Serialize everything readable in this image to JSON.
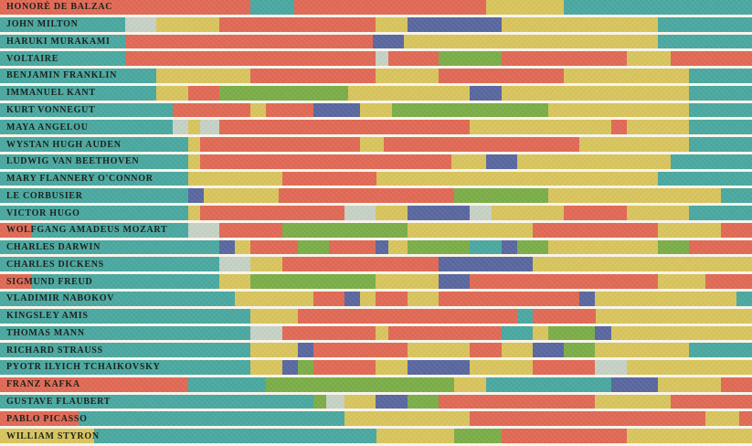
{
  "chart_data": {
    "type": "stacked-bar-timeline",
    "description": "Daily routines of famous creatives; each horizontal bar spans 24 hours (midnight to midnight), segmented by activity color.",
    "x_unit": "hours",
    "x_range": [
      0,
      24
    ],
    "grid": false,
    "legend": "none visible",
    "palette": {
      "teal": "#4ba9a1",
      "red": "#e16a56",
      "yellow": "#d9c55e",
      "navy": "#5a68a0",
      "green": "#7cae49",
      "gray": "#c7d2c6"
    },
    "separator_color": "#f7f4ea",
    "label_color": "#1e211d",
    "rows": [
      {
        "name": "HONORÉ DE BALZAC",
        "segments": [
          [
            0,
            8,
            "red"
          ],
          [
            8,
            9.4,
            "teal"
          ],
          [
            9.4,
            15.5,
            "red"
          ],
          [
            15.5,
            18,
            "yellow"
          ],
          [
            18,
            24,
            "teal"
          ]
        ]
      },
      {
        "name": "JOHN MILTON",
        "segments": [
          [
            0,
            4,
            "teal"
          ],
          [
            4,
            5,
            "gray"
          ],
          [
            5,
            7,
            "yellow"
          ],
          [
            7,
            12,
            "red"
          ],
          [
            12,
            13,
            "yellow"
          ],
          [
            13,
            16,
            "navy"
          ],
          [
            16,
            21,
            "yellow"
          ],
          [
            21,
            24,
            "teal"
          ]
        ]
      },
      {
        "name": "HARUKI MURAKAMI",
        "segments": [
          [
            0,
            4,
            "teal"
          ],
          [
            4,
            11.9,
            "red"
          ],
          [
            11.9,
            12.9,
            "navy"
          ],
          [
            12.9,
            21,
            "yellow"
          ],
          [
            21,
            24,
            "teal"
          ]
        ]
      },
      {
        "name": "VOLTAIRE",
        "segments": [
          [
            0,
            4,
            "teal"
          ],
          [
            4,
            12,
            "red"
          ],
          [
            12,
            12.4,
            "gray"
          ],
          [
            12.4,
            14,
            "red"
          ],
          [
            14,
            16,
            "green"
          ],
          [
            16,
            20,
            "red"
          ],
          [
            20,
            21.4,
            "yellow"
          ],
          [
            21.4,
            24,
            "red"
          ]
        ]
      },
      {
        "name": "BENJAMIN FRANKLIN",
        "segments": [
          [
            0,
            5,
            "teal"
          ],
          [
            5,
            8,
            "yellow"
          ],
          [
            8,
            12,
            "red"
          ],
          [
            12,
            14,
            "yellow"
          ],
          [
            14,
            18,
            "red"
          ],
          [
            18,
            22,
            "yellow"
          ],
          [
            22,
            24,
            "teal"
          ]
        ]
      },
      {
        "name": "IMMANUEL KANT",
        "segments": [
          [
            0,
            5,
            "teal"
          ],
          [
            5,
            6,
            "yellow"
          ],
          [
            6,
            7,
            "red"
          ],
          [
            7,
            11.1,
            "green"
          ],
          [
            11.1,
            15,
            "yellow"
          ],
          [
            15,
            16,
            "navy"
          ],
          [
            16,
            22,
            "yellow"
          ],
          [
            22,
            24,
            "teal"
          ]
        ]
      },
      {
        "name": "KURT VONNEGUT",
        "segments": [
          [
            0,
            5.5,
            "teal"
          ],
          [
            5.5,
            8,
            "red"
          ],
          [
            8,
            8.5,
            "yellow"
          ],
          [
            8.5,
            10,
            "red"
          ],
          [
            10,
            11.5,
            "navy"
          ],
          [
            11.5,
            12.5,
            "yellow"
          ],
          [
            12.5,
            17.5,
            "green"
          ],
          [
            17.5,
            22,
            "yellow"
          ],
          [
            22,
            24,
            "teal"
          ]
        ]
      },
      {
        "name": "MAYA ANGELOU",
        "segments": [
          [
            0,
            5.5,
            "teal"
          ],
          [
            5.5,
            6,
            "gray"
          ],
          [
            6,
            6.4,
            "yellow"
          ],
          [
            6.4,
            7,
            "gray"
          ],
          [
            7,
            15,
            "red"
          ],
          [
            15,
            19.5,
            "yellow"
          ],
          [
            19.5,
            20,
            "red"
          ],
          [
            20,
            22,
            "yellow"
          ],
          [
            22,
            24,
            "teal"
          ]
        ]
      },
      {
        "name": "WYSTAN HUGH AUDEN",
        "segments": [
          [
            0,
            6,
            "teal"
          ],
          [
            6,
            6.4,
            "yellow"
          ],
          [
            6.4,
            11.5,
            "red"
          ],
          [
            11.5,
            12.25,
            "yellow"
          ],
          [
            12.25,
            18.5,
            "red"
          ],
          [
            18.5,
            22,
            "yellow"
          ],
          [
            22,
            24,
            "teal"
          ]
        ]
      },
      {
        "name": "LUDWIG VAN BEETHOVEN",
        "segments": [
          [
            0,
            6,
            "teal"
          ],
          [
            6,
            6.4,
            "yellow"
          ],
          [
            6.4,
            14.4,
            "red"
          ],
          [
            14.4,
            15.5,
            "yellow"
          ],
          [
            15.5,
            16.5,
            "navy"
          ],
          [
            16.5,
            21.4,
            "yellow"
          ],
          [
            21.4,
            24,
            "teal"
          ]
        ]
      },
      {
        "name": "MARY FLANNERY O'CONNOR",
        "segments": [
          [
            0,
            6,
            "teal"
          ],
          [
            6,
            9,
            "yellow"
          ],
          [
            9,
            12,
            "red"
          ],
          [
            12,
            21,
            "yellow"
          ],
          [
            21,
            24,
            "teal"
          ]
        ]
      },
      {
        "name": "LE CORBUSIER",
        "segments": [
          [
            0,
            6,
            "teal"
          ],
          [
            6,
            6.5,
            "navy"
          ],
          [
            6.5,
            8.9,
            "yellow"
          ],
          [
            8.9,
            14.5,
            "red"
          ],
          [
            14.5,
            17.5,
            "green"
          ],
          [
            17.5,
            23,
            "yellow"
          ],
          [
            23,
            24,
            "teal"
          ]
        ]
      },
      {
        "name": "VICTOR HUGO",
        "segments": [
          [
            0,
            6,
            "teal"
          ],
          [
            6,
            6.4,
            "yellow"
          ],
          [
            6.4,
            11,
            "red"
          ],
          [
            11,
            12,
            "gray"
          ],
          [
            12,
            13,
            "yellow"
          ],
          [
            13,
            15,
            "navy"
          ],
          [
            15,
            15.7,
            "gray"
          ],
          [
            15.7,
            18,
            "yellow"
          ],
          [
            18,
            20,
            "red"
          ],
          [
            20,
            22,
            "yellow"
          ],
          [
            22,
            24,
            "teal"
          ]
        ]
      },
      {
        "name": "WOLFGANG AMADEUS MOZART",
        "segments": [
          [
            0,
            1,
            "red"
          ],
          [
            1,
            6,
            "teal"
          ],
          [
            6,
            7,
            "gray"
          ],
          [
            7,
            9,
            "red"
          ],
          [
            9,
            13,
            "green"
          ],
          [
            13,
            17,
            "yellow"
          ],
          [
            17,
            21,
            "red"
          ],
          [
            21,
            23,
            "yellow"
          ],
          [
            23,
            24,
            "red"
          ]
        ]
      },
      {
        "name": "CHARLES DARWIN",
        "segments": [
          [
            0,
            7,
            "teal"
          ],
          [
            7,
            7.5,
            "navy"
          ],
          [
            7.5,
            8,
            "yellow"
          ],
          [
            8,
            9.5,
            "red"
          ],
          [
            9.5,
            10.5,
            "green"
          ],
          [
            10.5,
            12,
            "red"
          ],
          [
            12,
            12.4,
            "navy"
          ],
          [
            12.4,
            13,
            "yellow"
          ],
          [
            13,
            15,
            "green"
          ],
          [
            15,
            16,
            "teal"
          ],
          [
            16,
            16.5,
            "navy"
          ],
          [
            16.5,
            17.5,
            "green"
          ],
          [
            17.5,
            21,
            "yellow"
          ],
          [
            21,
            22,
            "green"
          ],
          [
            22,
            24,
            "red"
          ]
        ]
      },
      {
        "name": "CHARLES DICKENS",
        "segments": [
          [
            0,
            7,
            "teal"
          ],
          [
            7,
            8,
            "gray"
          ],
          [
            8,
            9,
            "yellow"
          ],
          [
            9,
            14,
            "red"
          ],
          [
            14,
            17,
            "navy"
          ],
          [
            17,
            24,
            "yellow"
          ]
        ]
      },
      {
        "name": "SIGMUND FREUD",
        "segments": [
          [
            0,
            1,
            "red"
          ],
          [
            1,
            7,
            "teal"
          ],
          [
            7,
            8,
            "yellow"
          ],
          [
            8,
            12,
            "green"
          ],
          [
            12,
            14,
            "yellow"
          ],
          [
            14,
            15,
            "navy"
          ],
          [
            15,
            21,
            "red"
          ],
          [
            21,
            22.5,
            "yellow"
          ],
          [
            22.5,
            24,
            "red"
          ]
        ]
      },
      {
        "name": "VLADIMIR NABOKOV",
        "segments": [
          [
            0,
            7.5,
            "teal"
          ],
          [
            7.5,
            10,
            "yellow"
          ],
          [
            10,
            11,
            "red"
          ],
          [
            11,
            11.5,
            "navy"
          ],
          [
            11.5,
            12,
            "yellow"
          ],
          [
            12,
            13,
            "red"
          ],
          [
            13,
            14,
            "yellow"
          ],
          [
            14,
            18.5,
            "red"
          ],
          [
            18.5,
            19,
            "navy"
          ],
          [
            19,
            23.5,
            "yellow"
          ],
          [
            23.5,
            24,
            "teal"
          ]
        ]
      },
      {
        "name": "KINGSLEY AMIS",
        "segments": [
          [
            0,
            8,
            "teal"
          ],
          [
            8,
            9.5,
            "yellow"
          ],
          [
            9.5,
            16.5,
            "red"
          ],
          [
            16.5,
            17,
            "teal"
          ],
          [
            17,
            19,
            "red"
          ],
          [
            19,
            24,
            "yellow"
          ]
        ]
      },
      {
        "name": "THOMAS MANN",
        "segments": [
          [
            0,
            8,
            "teal"
          ],
          [
            8,
            9,
            "gray"
          ],
          [
            9,
            12,
            "red"
          ],
          [
            12,
            12.4,
            "yellow"
          ],
          [
            12.4,
            16,
            "red"
          ],
          [
            16,
            17,
            "teal"
          ],
          [
            17,
            17.5,
            "yellow"
          ],
          [
            17.5,
            19,
            "green"
          ],
          [
            19,
            19.5,
            "navy"
          ],
          [
            19.5,
            24,
            "yellow"
          ]
        ]
      },
      {
        "name": "RICHARD STRAUSS",
        "segments": [
          [
            0,
            8,
            "teal"
          ],
          [
            8,
            9.5,
            "yellow"
          ],
          [
            9.5,
            10,
            "navy"
          ],
          [
            10,
            13,
            "red"
          ],
          [
            13,
            15,
            "yellow"
          ],
          [
            15,
            16,
            "red"
          ],
          [
            16,
            17,
            "yellow"
          ],
          [
            17,
            18,
            "navy"
          ],
          [
            18,
            19,
            "green"
          ],
          [
            19,
            22,
            "yellow"
          ],
          [
            22,
            24,
            "teal"
          ]
        ]
      },
      {
        "name": "PYOTR ILYICH TCHAIKOVSKY",
        "segments": [
          [
            0,
            8,
            "teal"
          ],
          [
            8,
            9,
            "yellow"
          ],
          [
            9,
            9.5,
            "navy"
          ],
          [
            9.5,
            10,
            "green"
          ],
          [
            10,
            12,
            "red"
          ],
          [
            12,
            13,
            "yellow"
          ],
          [
            13,
            15,
            "navy"
          ],
          [
            15,
            17,
            "yellow"
          ],
          [
            17,
            19,
            "red"
          ],
          [
            19,
            20,
            "gray"
          ],
          [
            20,
            24,
            "yellow"
          ]
        ]
      },
      {
        "name": "FRANZ KAFKA",
        "segments": [
          [
            0,
            6,
            "red"
          ],
          [
            6,
            8.5,
            "teal"
          ],
          [
            8.5,
            14.5,
            "green"
          ],
          [
            14.5,
            15.5,
            "yellow"
          ],
          [
            15.5,
            19.5,
            "teal"
          ],
          [
            19.5,
            21,
            "navy"
          ],
          [
            21,
            23,
            "yellow"
          ],
          [
            23,
            24,
            "red"
          ]
        ]
      },
      {
        "name": "GUSTAVE FLAUBERT",
        "segments": [
          [
            0,
            10,
            "teal"
          ],
          [
            10,
            10.4,
            "green"
          ],
          [
            10.4,
            11,
            "gray"
          ],
          [
            11,
            12,
            "yellow"
          ],
          [
            12,
            13,
            "navy"
          ],
          [
            13,
            14,
            "green"
          ],
          [
            14,
            19,
            "red"
          ],
          [
            19,
            21.4,
            "yellow"
          ],
          [
            21.4,
            24,
            "red"
          ]
        ]
      },
      {
        "name": "PABLO PICASSO",
        "segments": [
          [
            0,
            2.5,
            "red"
          ],
          [
            2.5,
            11,
            "teal"
          ],
          [
            11,
            15,
            "yellow"
          ],
          [
            15,
            22.5,
            "red"
          ],
          [
            22.5,
            23.6,
            "yellow"
          ],
          [
            23.6,
            24,
            "red"
          ]
        ]
      },
      {
        "name": "WILLIAM STYRON",
        "segments": [
          [
            0,
            3,
            "yellow"
          ],
          [
            3,
            12,
            "teal"
          ],
          [
            12,
            14.5,
            "yellow"
          ],
          [
            14.5,
            16,
            "green"
          ],
          [
            16,
            20,
            "red"
          ],
          [
            20,
            24,
            "yellow"
          ]
        ]
      }
    ]
  }
}
